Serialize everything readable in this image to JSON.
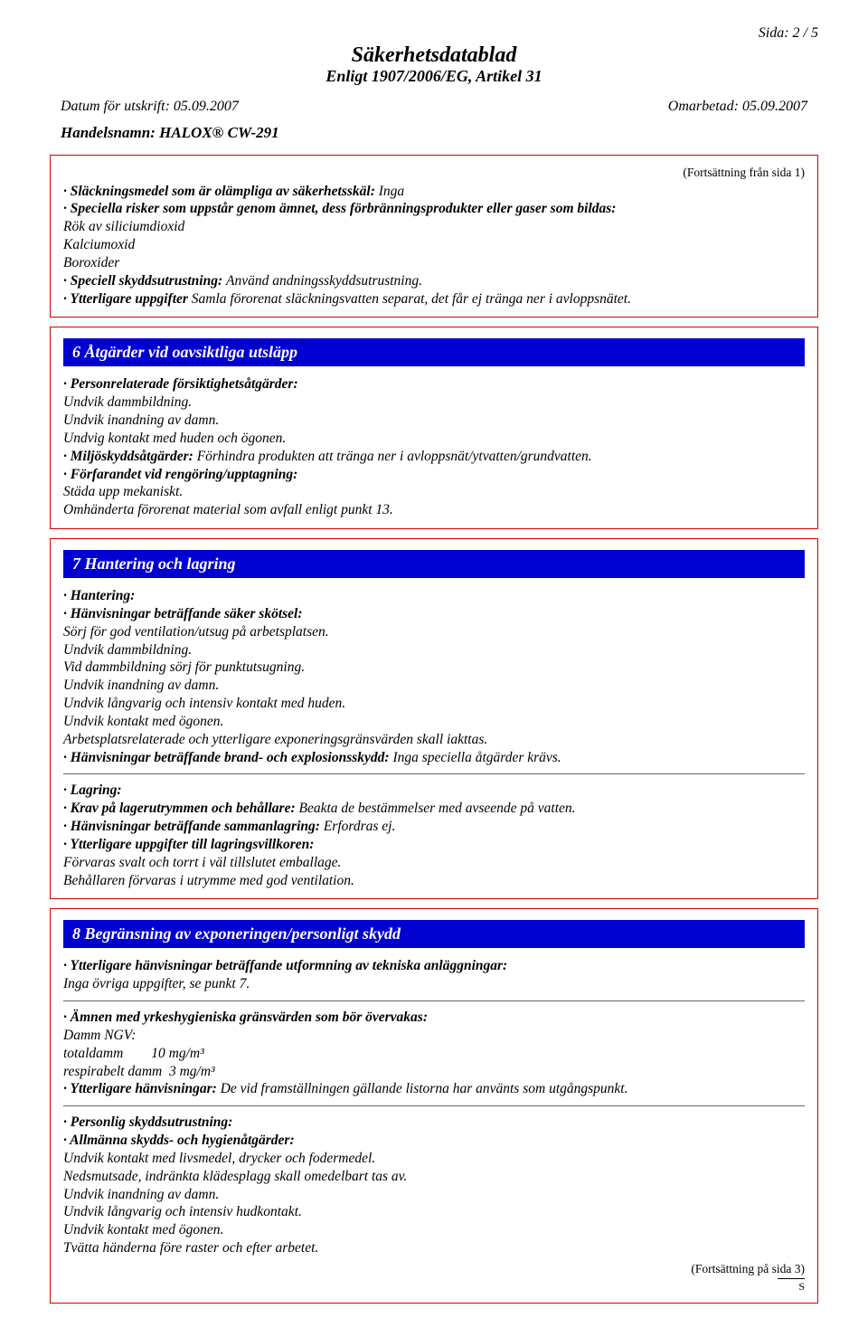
{
  "page_number": "Sida: 2 / 5",
  "title": "Säkerhetsdatablad",
  "subtitle": "Enligt 1907/2006/EG, Artikel 31",
  "print_date_label": "Datum för utskrift: ",
  "print_date": "05.09.2007",
  "revised_label": "Omarbetad: ",
  "revised_date": "05.09.2007",
  "tradename_label": "Handelsnamn: ",
  "tradename": "HALOX® CW-291",
  "continuation_top": "(Fortsättning från sida 1)",
  "continuation_bottom": "(Fortsättning på sida 3)",
  "footer_s": "S",
  "section5": {
    "items": {
      "extinguish": {
        "label": "· Släckningsmedel som är olämpliga av säkerhetsskäl: ",
        "value": "Inga"
      },
      "risks_label": "· Speciella risker som uppstår genom ämnet, dess förbränningsprodukter eller gaser som bildas:",
      "risks_lines": {
        "l1": "Rök av siliciumdioxid",
        "l2": "Kalciumoxid",
        "l3": "Boroxider"
      },
      "protection": {
        "label": "· Speciell skyddsutrustning: ",
        "value": "Använd andningsskyddsutrustning."
      },
      "additional": {
        "label": "· Ytterligare uppgifter ",
        "value": "Samla förorenat släckningsvatten separat, det får ej tränga ner i avloppsnätet."
      }
    }
  },
  "section6": {
    "header": "6 Åtgärder vid oavsiktliga utsläpp",
    "personal_label": "· Personrelaterade försiktighetsåtgärder:",
    "personal_lines": {
      "l1": "Undvik dammbildning.",
      "l2": "Undvik inandning av damn.",
      "l3": "Undvig kontakt med huden och ögonen."
    },
    "env": {
      "label": "· Miljöskyddsåtgärder: ",
      "value": "Förhindra produkten att tränga ner i avloppsnät/ytvatten/grundvatten."
    },
    "cleanup_label": "· Förfarandet vid rengöring/upptagning:",
    "cleanup_lines": {
      "l1": "Städa upp mekaniskt.",
      "l2": "Omhänderta förorenat material som avfall enligt punkt 13."
    }
  },
  "section7": {
    "header": "7 Hantering och lagring",
    "handling_label": "· Hantering:",
    "safe_label": "· Hänvisningar beträffande säker skötsel:",
    "safe_lines": {
      "l1": "Sörj för god ventilation/utsug på arbetsplatsen.",
      "l2": "Undvik dammbildning.",
      "l3": "Vid dammbildning sörj för punktutsugning.",
      "l4": "Undvik inandning av damn.",
      "l5": "Undvik långvarig och intensiv kontakt med huden.",
      "l6": "Undvik kontakt med ögonen.",
      "l7": "Arbetsplatsrelaterade och ytterligare exponeringsgränsvärden skall iakttas."
    },
    "fire": {
      "label": "· Hänvisningar beträffande brand- och explosionsskydd: ",
      "value": "Inga speciella åtgärder krävs."
    },
    "storage_label": "· Lagring:",
    "container": {
      "label": "· Krav på lagerutrymmen och behållare: ",
      "value": "Beakta de bestämmelser med avseende på vatten."
    },
    "combined": {
      "label": "· Hänvisningar beträffande sammanlagring: ",
      "value": "Erfordras ej."
    },
    "conditions_label": "· Ytterligare uppgifter till lagringsvillkoren:",
    "conditions_lines": {
      "l1": "Förvaras svalt och torrt i väl tillslutet emballage.",
      "l2": "Behållaren förvaras i utrymme med god ventilation."
    }
  },
  "section8": {
    "header": "8 Begränsning av exponeringen/personligt skydd",
    "tech_label": "· Ytterligare hänvisningar beträffande utformning av tekniska anläggningar:",
    "tech_value": "Inga övriga uppgifter, se punkt 7.",
    "limits_label": "· Ämnen med yrkeshygieniska gränsvärden som bör övervakas:",
    "limits_lines": {
      "l1": "Damm NGV:",
      "l2": "totaldamm        10 mg/m³",
      "l3": "respirabelt damm  3 mg/m³"
    },
    "additional": {
      "label": "· Ytterligare hänvisningar: ",
      "value": "De vid framställningen gällande listorna har använts som utgångspunkt."
    },
    "ppe_label": "· Personlig skyddsutrustning:",
    "hygiene_label": "· Allmänna skydds- och hygienåtgärder:",
    "hygiene_lines": {
      "l1": "Undvik kontakt med livsmedel, drycker och fodermedel.",
      "l2": "Nedsmutsade, indränkta klädesplagg skall omedelbart tas av.",
      "l3": "Undvik inandning av damn.",
      "l4": "Undvik långvarig och intensiv hudkontakt.",
      "l5": "Undvik kontakt med ögonen.",
      "l6": "Tvätta händerna före raster och efter arbetet."
    }
  }
}
